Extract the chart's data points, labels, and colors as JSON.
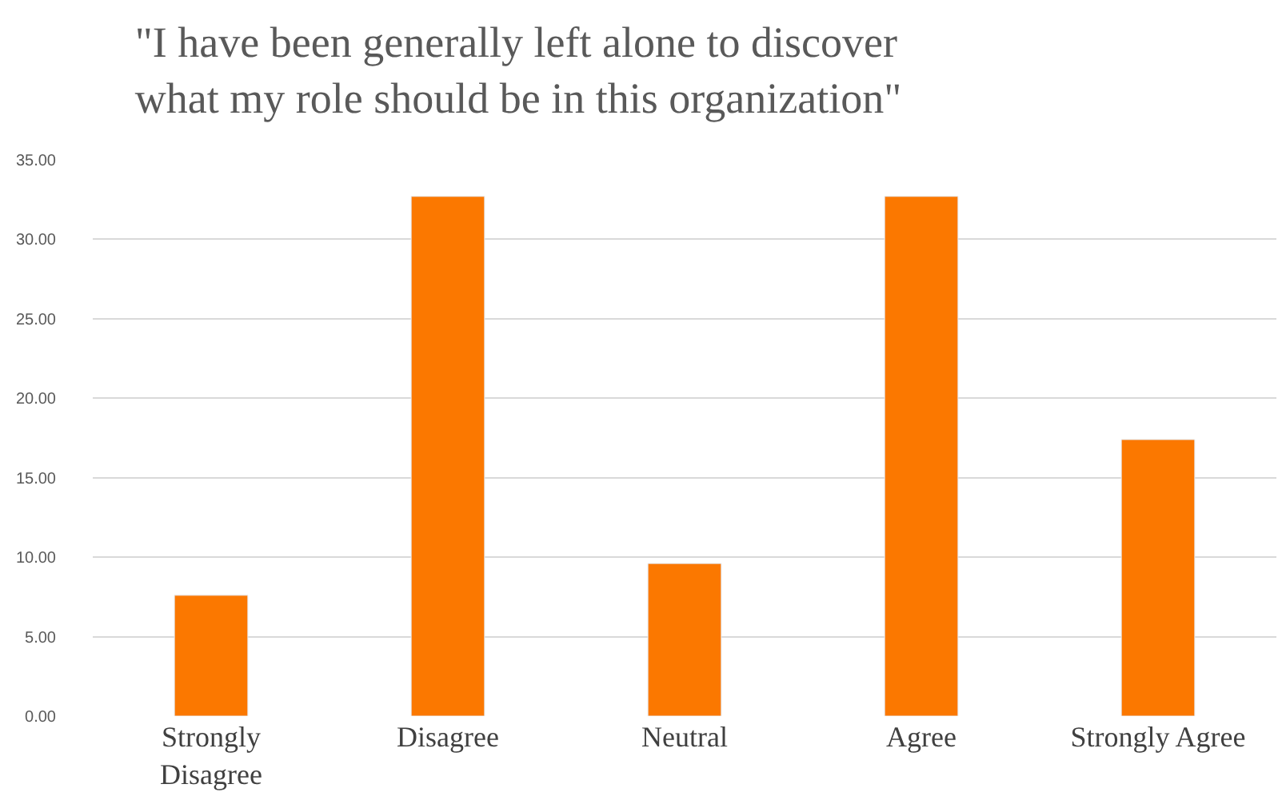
{
  "chart_data": {
    "type": "bar",
    "title": "\"I have been generally left alone to discover what my role should be in this organization\"",
    "categories": [
      "Strongly Disagree",
      "Disagree",
      "Neutral",
      "Agree",
      "Strongly Agree"
    ],
    "values": [
      7.6,
      32.7,
      9.6,
      32.7,
      17.4
    ],
    "color": "#fb7800",
    "ylim": [
      0,
      35
    ],
    "yticks": [
      {
        "value": 0,
        "label": "0.00"
      },
      {
        "value": 5,
        "label": "5.00"
      },
      {
        "value": 10,
        "label": "10.00"
      },
      {
        "value": 15,
        "label": "15.00"
      },
      {
        "value": 20,
        "label": "20.00"
      },
      {
        "value": 25,
        "label": "25.00"
      },
      {
        "value": 30,
        "label": "30.00"
      },
      {
        "value": 35,
        "label": "35.00"
      }
    ],
    "grid": "y",
    "legend": false
  }
}
